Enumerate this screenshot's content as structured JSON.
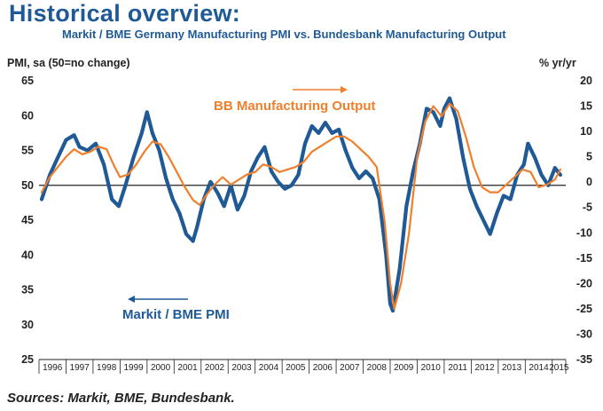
{
  "chart_data": {
    "type": "line",
    "title": "Historical overview:",
    "subtitle": "Markit / BME Germany Manufacturing PMI vs. Bundesbank Manufacturing Output",
    "ylabel_left": "PMI, sa (50=no change)",
    "ylabel_right": "% yr/yr",
    "source": "Sources: Markit, BME, Bundesbank.",
    "ylim_left": [
      25,
      65
    ],
    "ylim_right": [
      -35,
      20
    ],
    "yticks_left": [
      25,
      30,
      35,
      40,
      45,
      50,
      55,
      60,
      65
    ],
    "yticks_right": [
      -35,
      -30,
      -25,
      -20,
      -15,
      -10,
      -5,
      0,
      5,
      10,
      15,
      20
    ],
    "xlim": [
      1996.0,
      2015.5
    ],
    "x_categories": [
      "1996",
      "1997",
      "1998",
      "1999",
      "2000",
      "2001",
      "2002",
      "2003",
      "2004",
      "2005",
      "2006",
      "2007",
      "2008",
      "2009",
      "2010",
      "2011",
      "2012",
      "2013",
      "2014",
      "2015"
    ],
    "reference_line": {
      "axis": "left",
      "value": 50
    },
    "series": [
      {
        "name": "Markit / BME PMI",
        "axis": "left",
        "color": "#1f5a96",
        "x": [
          1996.1,
          1996.4,
          1996.7,
          1997.0,
          1997.3,
          1997.5,
          1997.8,
          1998.1,
          1998.4,
          1998.7,
          1998.95,
          1999.2,
          1999.5,
          1999.8,
          2000.0,
          2000.2,
          2000.45,
          2000.7,
          2000.95,
          2001.2,
          2001.45,
          2001.7,
          2001.85,
          2002.1,
          2002.35,
          2002.6,
          2002.85,
          2003.1,
          2003.35,
          2003.6,
          2003.85,
          2004.1,
          2004.35,
          2004.6,
          2004.85,
          2005.1,
          2005.35,
          2005.6,
          2005.85,
          2006.1,
          2006.35,
          2006.6,
          2006.85,
          2007.1,
          2007.35,
          2007.6,
          2007.85,
          2008.1,
          2008.35,
          2008.6,
          2008.85,
          2009.0,
          2009.1,
          2009.35,
          2009.6,
          2009.85,
          2010.1,
          2010.35,
          2010.6,
          2010.85,
          2011.0,
          2011.2,
          2011.45,
          2011.7,
          2011.95,
          2012.2,
          2012.45,
          2012.7,
          2012.95,
          2013.2,
          2013.45,
          2013.7,
          2013.95,
          2014.1,
          2014.35,
          2014.6,
          2014.85,
          2015.1,
          2015.3
        ],
        "values": [
          48.0,
          51.5,
          54.0,
          56.5,
          57.2,
          55.5,
          55.0,
          56.0,
          53.0,
          48.0,
          47.0,
          50.0,
          54.0,
          57.5,
          60.5,
          57.5,
          55.0,
          51.0,
          48.0,
          46.0,
          43.0,
          42.0,
          44.0,
          48.0,
          50.5,
          49.0,
          47.0,
          50.0,
          46.5,
          48.5,
          52.0,
          54.0,
          55.5,
          52.0,
          50.5,
          49.5,
          50.0,
          51.5,
          56.0,
          58.5,
          57.5,
          59.0,
          57.5,
          58.0,
          55.0,
          52.5,
          51.0,
          52.0,
          51.0,
          48.0,
          40.0,
          33.0,
          32.0,
          38.0,
          47.0,
          52.0,
          56.0,
          61.0,
          60.5,
          58.5,
          61.0,
          62.5,
          59.5,
          54.0,
          49.5,
          47.0,
          45.0,
          43.0,
          46.0,
          48.5,
          48.0,
          51.5,
          53.0,
          56.0,
          54.0,
          51.5,
          50.0,
          52.5,
          51.5
        ]
      },
      {
        "name": "BB Manufacturing Output",
        "axis": "right",
        "color": "#f07f2c",
        "x": [
          1996.1,
          1996.4,
          1996.7,
          1997.0,
          1997.3,
          1997.6,
          1997.9,
          1998.2,
          1998.5,
          1998.8,
          1999.0,
          1999.3,
          1999.6,
          1999.9,
          2000.2,
          2000.5,
          2000.8,
          2001.1,
          2001.4,
          2001.7,
          2001.95,
          2002.2,
          2002.5,
          2002.8,
          2003.1,
          2003.4,
          2003.7,
          2004.0,
          2004.3,
          2004.6,
          2004.9,
          2005.2,
          2005.5,
          2005.8,
          2006.1,
          2006.4,
          2006.7,
          2007.0,
          2007.3,
          2007.6,
          2007.9,
          2008.2,
          2008.5,
          2008.8,
          2009.0,
          2009.15,
          2009.4,
          2009.7,
          2010.0,
          2010.3,
          2010.6,
          2010.9,
          2011.2,
          2011.5,
          2011.8,
          2012.1,
          2012.4,
          2012.7,
          2013.0,
          2013.3,
          2013.6,
          2013.9,
          2014.2,
          2014.5,
          2014.8,
          2015.1,
          2015.3
        ],
        "values": [
          -2.0,
          1.0,
          3.0,
          5.0,
          6.5,
          5.5,
          6.0,
          7.0,
          6.5,
          3.0,
          1.0,
          1.5,
          3.5,
          6.0,
          8.0,
          7.5,
          5.0,
          2.0,
          -1.0,
          -3.5,
          -4.5,
          -2.5,
          -0.5,
          1.0,
          -0.5,
          0.5,
          1.5,
          2.0,
          3.5,
          3.0,
          2.0,
          2.5,
          3.0,
          4.0,
          6.0,
          7.0,
          8.0,
          9.0,
          9.0,
          8.0,
          6.5,
          5.0,
          3.0,
          -8.0,
          -20.0,
          -25.0,
          -20.0,
          -10.0,
          5.0,
          12.0,
          15.0,
          13.0,
          15.5,
          14.0,
          9.0,
          3.0,
          -1.0,
          -2.0,
          -2.0,
          -0.5,
          1.0,
          2.5,
          2.0,
          -1.0,
          -0.5,
          0.5,
          2.5
        ]
      }
    ],
    "annotations": [
      {
        "text": "BB Manufacturing Output",
        "arrow": "right"
      },
      {
        "text": "Markit / BME PMI",
        "arrow": "left"
      }
    ]
  }
}
